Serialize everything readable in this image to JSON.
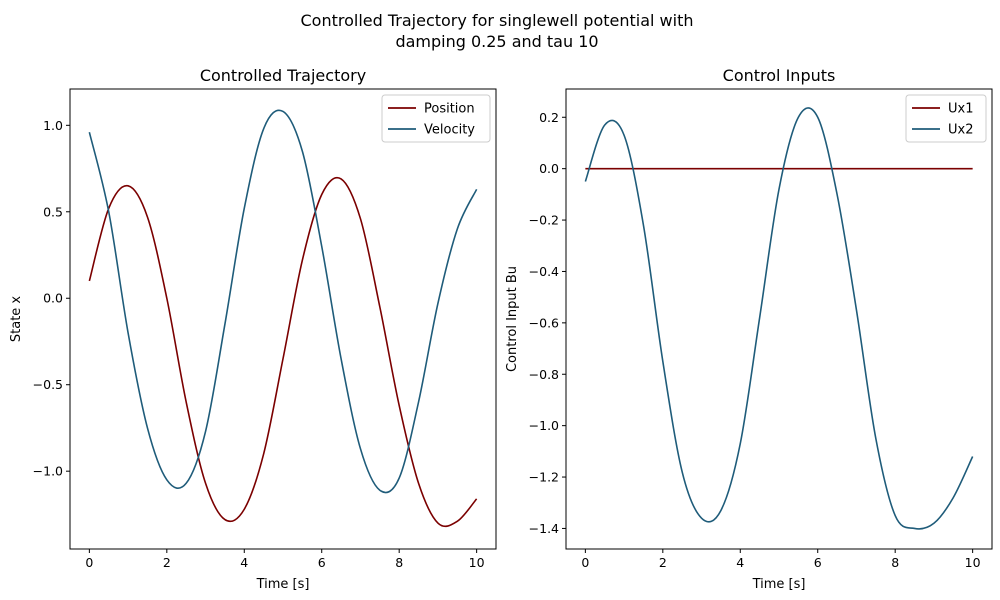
{
  "figure": {
    "suptitle_line1": "Controlled Trajectory for singlewell potential with",
    "suptitle_line2": "damping 0.25 and tau 10"
  },
  "chart_data": [
    {
      "type": "line",
      "title": "Controlled Trajectory",
      "xlabel": "Time [s]",
      "ylabel": "State x",
      "xlim": [
        -0.5,
        10.5
      ],
      "ylim": [
        -1.45,
        1.21
      ],
      "xticks": [
        0,
        2,
        4,
        6,
        8,
        10
      ],
      "xtick_labels": [
        "0",
        "2",
        "4",
        "6",
        "8",
        "10"
      ],
      "yticks": [
        1.0,
        0.5,
        0.0,
        -0.5,
        -1.0
      ],
      "ytick_labels": [
        "1.0",
        "0.5",
        "0.0",
        "−0.5",
        "−1.0"
      ],
      "grid": false,
      "legend_position": "upper right",
      "x": [
        0,
        0.5,
        1,
        1.5,
        2,
        2.5,
        3,
        3.5,
        4,
        4.5,
        5,
        5.5,
        6,
        6.5,
        7,
        7.5,
        8,
        8.5,
        9,
        9.5,
        10
      ],
      "series": [
        {
          "name": "Position",
          "color": "#7b0000",
          "values": [
            0.1,
            0.52,
            0.65,
            0.47,
            0.0,
            -0.6,
            -1.07,
            -1.28,
            -1.22,
            -0.9,
            -0.35,
            0.22,
            0.6,
            0.69,
            0.46,
            -0.05,
            -0.62,
            -1.07,
            -1.3,
            -1.29,
            -1.16
          ]
        },
        {
          "name": "Velocity",
          "color": "#1f5c7a",
          "values": [
            0.96,
            0.5,
            -0.2,
            -0.75,
            -1.05,
            -1.07,
            -0.77,
            -0.15,
            0.52,
            0.98,
            1.08,
            0.85,
            0.3,
            -0.35,
            -0.87,
            -1.11,
            -1.04,
            -0.6,
            -0.03,
            0.4,
            0.63
          ]
        }
      ]
    },
    {
      "type": "line",
      "title": "Control Inputs",
      "xlabel": "Time [s]",
      "ylabel": "Control Input Bu",
      "xlim": [
        -0.5,
        10.5
      ],
      "ylim": [
        -1.48,
        0.31
      ],
      "xticks": [
        0,
        2,
        4,
        6,
        8,
        10
      ],
      "xtick_labels": [
        "0",
        "2",
        "4",
        "6",
        "8",
        "10"
      ],
      "yticks": [
        0.2,
        0.0,
        -0.2,
        -0.4,
        -0.6,
        -0.8,
        -1.0,
        -1.2,
        -1.4
      ],
      "ytick_labels": [
        "0.2",
        "0.0",
        "−0.2",
        "−0.4",
        "−0.6",
        "−0.8",
        "−1.0",
        "−1.2",
        "−1.4"
      ],
      "grid": false,
      "legend_position": "upper right",
      "x": [
        0,
        0.5,
        1,
        1.5,
        2,
        2.5,
        3,
        3.5,
        4,
        4.5,
        5,
        5.5,
        6,
        6.5,
        7,
        7.5,
        8,
        8.5,
        9,
        9.5,
        10
      ],
      "series": [
        {
          "name": "Ux1",
          "color": "#7b0000",
          "values": [
            0.0,
            0.0,
            0.0,
            0.0,
            0.0,
            0.0,
            0.0,
            0.0,
            0.0,
            0.0,
            0.0,
            0.0,
            0.0,
            0.0,
            0.0,
            0.0,
            0.0,
            0.0,
            0.0,
            0.0,
            0.0
          ]
        },
        {
          "name": "Ux2",
          "color": "#1f5c7a",
          "values": [
            -0.05,
            0.17,
            0.13,
            -0.22,
            -0.75,
            -1.18,
            -1.36,
            -1.33,
            -1.07,
            -0.58,
            -0.08,
            0.2,
            0.2,
            -0.1,
            -0.55,
            -1.05,
            -1.35,
            -1.4,
            -1.38,
            -1.28,
            -1.12
          ]
        }
      ]
    }
  ]
}
